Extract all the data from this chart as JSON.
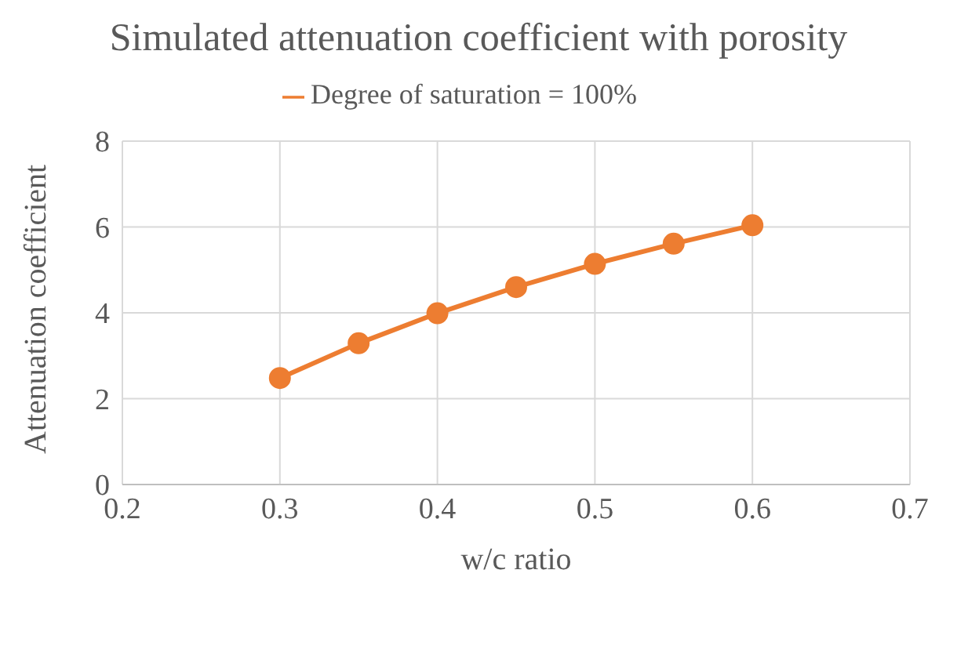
{
  "chart_data": {
    "type": "line",
    "title": "Simulated attenuation coefficient with porosity",
    "xlabel": "w/c ratio",
    "ylabel": "Attenuation coefficient",
    "x": [
      0.3,
      0.35,
      0.4,
      0.45,
      0.5,
      0.55,
      0.6
    ],
    "series": [
      {
        "name": "Degree of saturation = 100%",
        "color": "#ed7d31",
        "values": [
          2.48,
          3.29,
          3.99,
          4.6,
          5.14,
          5.61,
          6.04
        ]
      }
    ],
    "xlim": [
      0.2,
      0.7
    ],
    "xticks": [
      0.2,
      0.3,
      0.4,
      0.5,
      0.6,
      0.7
    ],
    "ylim": [
      0,
      8
    ],
    "yticks": [
      0,
      2,
      4,
      6,
      8
    ],
    "grid": true,
    "legend": "top",
    "marker": "circle",
    "line_style": "solid"
  }
}
